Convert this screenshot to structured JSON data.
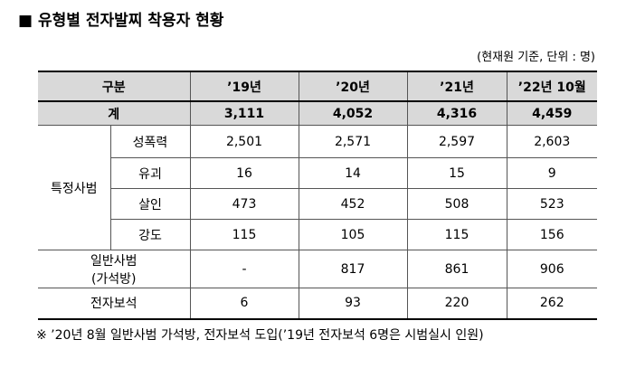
{
  "title": "■ 유형별 전자발찌 착용자 현황",
  "unit": "(현재원 기준, 단위 : 명)",
  "table": {
    "header": [
      "구분",
      "’19년",
      "’20년",
      "’21년",
      "’22년 10월"
    ],
    "total": {
      "label": "계",
      "values": [
        "3,111",
        "4,052",
        "4,316",
        "4,459"
      ]
    },
    "special": {
      "label": "특정사범",
      "rows": [
        {
          "label": "성폭력",
          "values": [
            "2,501",
            "2,571",
            "2,597",
            "2,603"
          ]
        },
        {
          "label": "유괴",
          "values": [
            "16",
            "14",
            "15",
            "9"
          ]
        },
        {
          "label": "살인",
          "values": [
            "473",
            "452",
            "508",
            "523"
          ]
        },
        {
          "label": "강도",
          "values": [
            "115",
            "105",
            "115",
            "156"
          ]
        }
      ]
    },
    "others": [
      {
        "label": [
          "일반사범",
          "(가석방)"
        ],
        "values": [
          "-",
          "817",
          "861",
          "906"
        ]
      },
      {
        "label": [
          "전자보석"
        ],
        "values": [
          "6",
          "93",
          "220",
          "262"
        ]
      }
    ]
  },
  "footnote": "※ ’20년 8월 일반사범 가석방, 전자보석 도입(’19년 전자보석 6명은 시범실시 인원)"
}
